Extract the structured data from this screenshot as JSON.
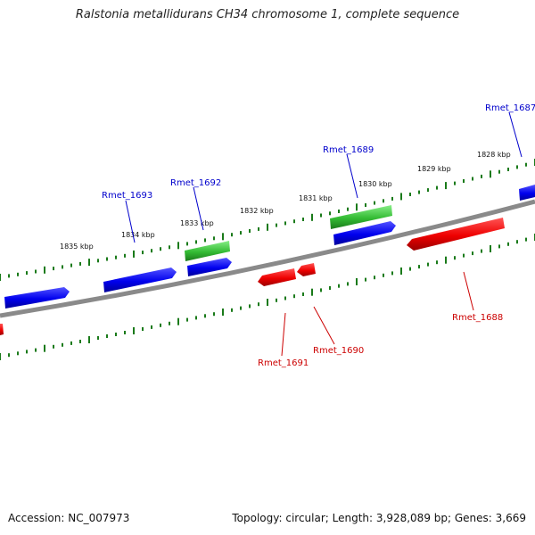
{
  "title": "Ralstonia metallidurans CH34 chromosome 1, complete sequence",
  "footer": {
    "accession": "Accession: NC_007973",
    "summary": "Topology: circular; Length: 3,928,089 bp; Genes: 3,669"
  },
  "colors": {
    "backbone": "#808080",
    "ticks": "#1a7a1a",
    "forward_gene": "#0000ee",
    "reverse_gene": "#ee0000",
    "rna_gene": "#33bb33"
  },
  "scale_labels": [
    "1835 kbp",
    "1834 kbp",
    "1833 kbp",
    "1832 kbp",
    "1831 kbp",
    "1830 kbp",
    "1829 kbp",
    "1828 kbp"
  ],
  "gene_labels": [
    {
      "text": "Rmet_1693",
      "strand": "forward"
    },
    {
      "text": "Rmet_1692",
      "strand": "forward"
    },
    {
      "text": "Rmet_1689",
      "strand": "forward"
    },
    {
      "text": "Rmet_1687",
      "strand": "forward"
    },
    {
      "text": "Rmet_1691",
      "strand": "reverse"
    },
    {
      "text": "Rmet_1690",
      "strand": "reverse"
    },
    {
      "text": "Rmet_1688",
      "strand": "reverse"
    }
  ]
}
